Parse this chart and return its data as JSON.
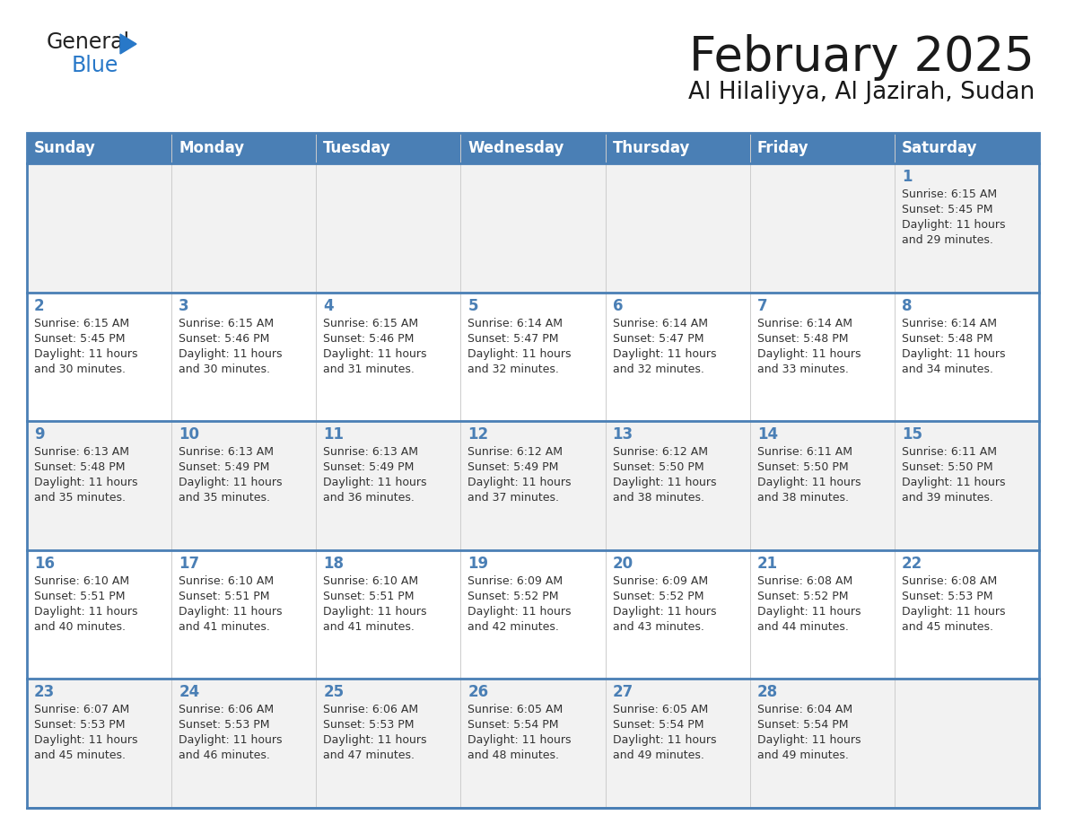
{
  "title": "February 2025",
  "subtitle": "Al Hilaliyya, Al Jazirah, Sudan",
  "days_of_week": [
    "Sunday",
    "Monday",
    "Tuesday",
    "Wednesday",
    "Thursday",
    "Friday",
    "Saturday"
  ],
  "header_bg": "#4a7fb5",
  "header_text": "#ffffff",
  "cell_bg_odd": "#f2f2f2",
  "cell_bg_even": "#ffffff",
  "border_color": "#4a7fb5",
  "day_number_color": "#4a7fb5",
  "text_color": "#333333",
  "title_color": "#1a1a1a",
  "calendar_data": [
    [
      null,
      null,
      null,
      null,
      null,
      null,
      {
        "day": 1,
        "sunrise": "6:15 AM",
        "sunset": "5:45 PM",
        "daylight": "11 hours and 29 minutes."
      }
    ],
    [
      {
        "day": 2,
        "sunrise": "6:15 AM",
        "sunset": "5:45 PM",
        "daylight": "11 hours and 30 minutes."
      },
      {
        "day": 3,
        "sunrise": "6:15 AM",
        "sunset": "5:46 PM",
        "daylight": "11 hours and 30 minutes."
      },
      {
        "day": 4,
        "sunrise": "6:15 AM",
        "sunset": "5:46 PM",
        "daylight": "11 hours and 31 minutes."
      },
      {
        "day": 5,
        "sunrise": "6:14 AM",
        "sunset": "5:47 PM",
        "daylight": "11 hours and 32 minutes."
      },
      {
        "day": 6,
        "sunrise": "6:14 AM",
        "sunset": "5:47 PM",
        "daylight": "11 hours and 32 minutes."
      },
      {
        "day": 7,
        "sunrise": "6:14 AM",
        "sunset": "5:48 PM",
        "daylight": "11 hours and 33 minutes."
      },
      {
        "day": 8,
        "sunrise": "6:14 AM",
        "sunset": "5:48 PM",
        "daylight": "11 hours and 34 minutes."
      }
    ],
    [
      {
        "day": 9,
        "sunrise": "6:13 AM",
        "sunset": "5:48 PM",
        "daylight": "11 hours and 35 minutes."
      },
      {
        "day": 10,
        "sunrise": "6:13 AM",
        "sunset": "5:49 PM",
        "daylight": "11 hours and 35 minutes."
      },
      {
        "day": 11,
        "sunrise": "6:13 AM",
        "sunset": "5:49 PM",
        "daylight": "11 hours and 36 minutes."
      },
      {
        "day": 12,
        "sunrise": "6:12 AM",
        "sunset": "5:49 PM",
        "daylight": "11 hours and 37 minutes."
      },
      {
        "day": 13,
        "sunrise": "6:12 AM",
        "sunset": "5:50 PM",
        "daylight": "11 hours and 38 minutes."
      },
      {
        "day": 14,
        "sunrise": "6:11 AM",
        "sunset": "5:50 PM",
        "daylight": "11 hours and 38 minutes."
      },
      {
        "day": 15,
        "sunrise": "6:11 AM",
        "sunset": "5:50 PM",
        "daylight": "11 hours and 39 minutes."
      }
    ],
    [
      {
        "day": 16,
        "sunrise": "6:10 AM",
        "sunset": "5:51 PM",
        "daylight": "11 hours and 40 minutes."
      },
      {
        "day": 17,
        "sunrise": "6:10 AM",
        "sunset": "5:51 PM",
        "daylight": "11 hours and 41 minutes."
      },
      {
        "day": 18,
        "sunrise": "6:10 AM",
        "sunset": "5:51 PM",
        "daylight": "11 hours and 41 minutes."
      },
      {
        "day": 19,
        "sunrise": "6:09 AM",
        "sunset": "5:52 PM",
        "daylight": "11 hours and 42 minutes."
      },
      {
        "day": 20,
        "sunrise": "6:09 AM",
        "sunset": "5:52 PM",
        "daylight": "11 hours and 43 minutes."
      },
      {
        "day": 21,
        "sunrise": "6:08 AM",
        "sunset": "5:52 PM",
        "daylight": "11 hours and 44 minutes."
      },
      {
        "day": 22,
        "sunrise": "6:08 AM",
        "sunset": "5:53 PM",
        "daylight": "11 hours and 45 minutes."
      }
    ],
    [
      {
        "day": 23,
        "sunrise": "6:07 AM",
        "sunset": "5:53 PM",
        "daylight": "11 hours and 45 minutes."
      },
      {
        "day": 24,
        "sunrise": "6:06 AM",
        "sunset": "5:53 PM",
        "daylight": "11 hours and 46 minutes."
      },
      {
        "day": 25,
        "sunrise": "6:06 AM",
        "sunset": "5:53 PM",
        "daylight": "11 hours and 47 minutes."
      },
      {
        "day": 26,
        "sunrise": "6:05 AM",
        "sunset": "5:54 PM",
        "daylight": "11 hours and 48 minutes."
      },
      {
        "day": 27,
        "sunrise": "6:05 AM",
        "sunset": "5:54 PM",
        "daylight": "11 hours and 49 minutes."
      },
      {
        "day": 28,
        "sunrise": "6:04 AM",
        "sunset": "5:54 PM",
        "daylight": "11 hours and 49 minutes."
      },
      null
    ]
  ]
}
